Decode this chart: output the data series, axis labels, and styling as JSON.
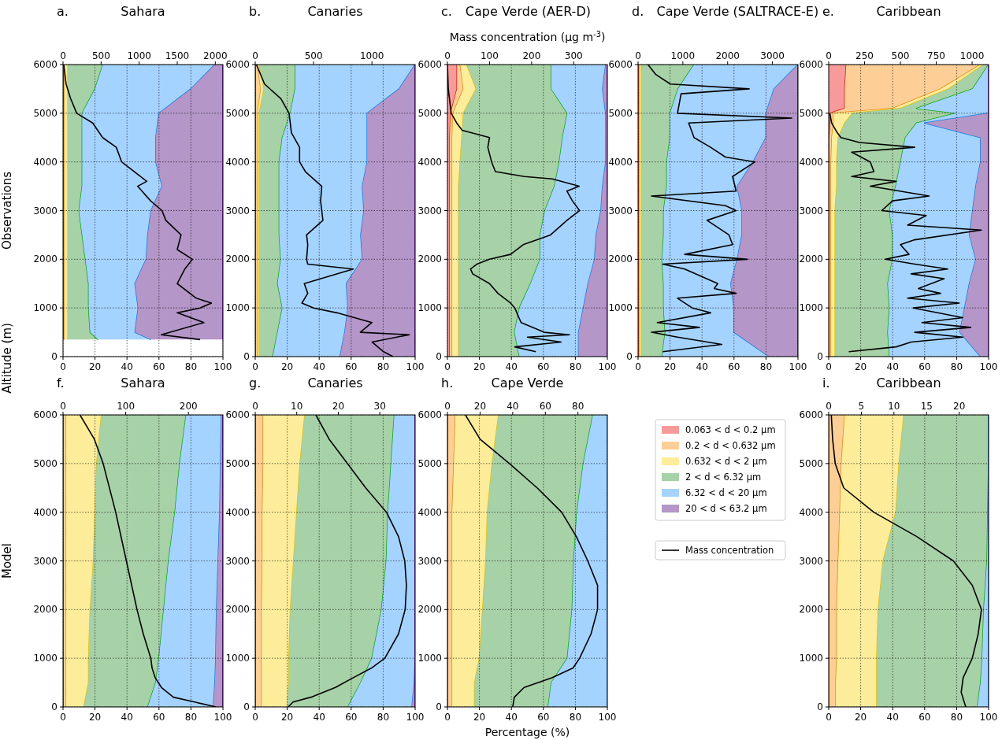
{
  "chart_data": [
    {
      "type": "area",
      "stacked": true,
      "orientation": "horizontal",
      "title": "Sahara",
      "annotations": [
        "a."
      ],
      "ylabel": "Observations",
      "grid": true,
      "xlim": [
        0,
        100
      ],
      "xticks": [
        0,
        20,
        40,
        60,
        80,
        100
      ],
      "ylim": [
        0,
        6000
      ],
      "yticks": [
        0,
        1000,
        2000,
        3000,
        4000,
        5000,
        6000
      ],
      "x2lim": [
        0,
        2100
      ],
      "x2ticks": [
        0,
        500,
        1000,
        1500,
        2000
      ],
      "x": [
        350,
        500,
        1000,
        1500,
        2000,
        2500,
        3000,
        3500,
        4000,
        4500,
        5000,
        5500,
        6000
      ],
      "series": [
        {
          "color": "#f79a9a",
          "values": [
            0.5,
            0.5,
            0.5,
            0.5,
            0.5,
            0.5,
            0.5,
            0.5,
            0.5,
            0.5,
            0.5,
            0.5,
            0.5
          ]
        },
        {
          "color": "#fdcf96",
          "values": [
            0.5,
            0.5,
            0.5,
            0.5,
            0.5,
            0.5,
            0.5,
            0.5,
            0.5,
            0.5,
            0.5,
            0.5,
            0.5
          ]
        },
        {
          "color": "#fdec9a",
          "values": [
            2,
            2,
            2,
            2,
            2,
            2,
            2,
            2,
            2,
            2,
            2,
            2,
            2
          ]
        },
        {
          "color": "#a7d1a7",
          "values": [
            19,
            14,
            13,
            13,
            11,
            9,
            7,
            9,
            9,
            9,
            9,
            17,
            22
          ]
        },
        {
          "color": "#a5d3ff",
          "values": [
            33,
            28,
            31,
            29,
            38,
            41,
            45,
            50,
            46,
            46,
            48,
            60,
            70
          ]
        },
        {
          "color": "#b496c8",
          "values": [
            45,
            55,
            53,
            55,
            48,
            47,
            45,
            38,
            42,
            42,
            40,
            20,
            5
          ]
        },
        {
          "type": "line",
          "axis": "x2",
          "color": "#000000",
          "x": [
            350,
            450,
            700,
            900,
            1000,
            1100,
            1200,
            1500,
            1800,
            2000,
            2200,
            2500,
            2800,
            3000,
            3200,
            3500,
            3600,
            4000,
            4300,
            4500,
            4800,
            5000,
            5300,
            5600,
            6000
          ],
          "values": [
            1800,
            1290,
            1850,
            1500,
            1800,
            1950,
            1750,
            1500,
            1600,
            1700,
            1500,
            1550,
            1350,
            1300,
            1150,
            980,
            1100,
            770,
            700,
            520,
            390,
            180,
            100,
            40,
            10
          ]
        }
      ]
    },
    {
      "type": "area",
      "stacked": true,
      "orientation": "horizontal",
      "title": "Canaries",
      "annotations": [
        "b."
      ],
      "grid": true,
      "xlim": [
        0,
        100
      ],
      "xticks": [
        0,
        20,
        40,
        60,
        80,
        100
      ],
      "ylim": [
        0,
        6000
      ],
      "yticks": [
        0,
        1000,
        2000,
        3000,
        4000,
        5000,
        6000
      ],
      "x2lim": [
        0,
        1370
      ],
      "x2ticks": [
        0,
        500,
        1000
      ],
      "x": [
        0,
        500,
        1000,
        1500,
        2000,
        2500,
        3000,
        3500,
        4000,
        4500,
        5000,
        5500,
        6000
      ],
      "series": [
        {
          "color": "#f79a9a",
          "values": [
            0.5,
            0.5,
            0.5,
            0.5,
            0.5,
            0.5,
            0.5,
            0.5,
            0.5,
            0.5,
            0.5,
            0.5,
            0.5
          ]
        },
        {
          "color": "#fdcf96",
          "values": [
            1,
            1,
            1,
            1,
            1,
            1,
            1,
            1,
            1,
            1,
            1,
            3,
            1
          ]
        },
        {
          "color": "#fdec9a",
          "values": [
            1,
            1,
            1,
            1,
            1,
            1,
            1,
            1,
            1,
            1,
            1,
            2,
            1
          ]
        },
        {
          "color": "#a7d1a7",
          "values": [
            8.5,
            11.5,
            14.5,
            11.5,
            13.5,
            12.5,
            12.5,
            12.5,
            12.5,
            14.5,
            19.5,
            19.5,
            22.5
          ]
        },
        {
          "color": "#a5d3ff",
          "values": [
            42,
            42,
            41,
            43,
            51,
            51,
            53,
            52,
            55,
            53,
            48,
            65,
            75
          ]
        },
        {
          "color": "#b496c8",
          "values": [
            47,
            44,
            42,
            43,
            33,
            34,
            32,
            33,
            30,
            30,
            30,
            10,
            0
          ]
        },
        {
          "type": "line",
          "axis": "x2",
          "color": "#000000",
          "x": [
            0,
            100,
            300,
            450,
            500,
            700,
            900,
            1000,
            1100,
            1300,
            1500,
            1800,
            1900,
            2000,
            2300,
            2500,
            2800,
            3000,
            3200,
            3500,
            3800,
            4000,
            4300,
            4600,
            5000,
            5300,
            5600,
            6000
          ],
          "values": [
            1180,
            1100,
            1000,
            1320,
            900,
            1000,
            700,
            500,
            400,
            450,
            420,
            840,
            450,
            440,
            450,
            440,
            580,
            570,
            560,
            570,
            430,
            380,
            380,
            310,
            290,
            220,
            80,
            10
          ]
        }
      ]
    },
    {
      "type": "area",
      "stacked": true,
      "orientation": "horizontal",
      "title": "Cape Verde (AER-D)",
      "annotations": [
        "c."
      ],
      "x2label": "Mass concentration (µg m$^{-3}$)",
      "grid": true,
      "xlim": [
        0,
        100
      ],
      "xticks": [
        0,
        20,
        40,
        60,
        80,
        100
      ],
      "ylim": [
        0,
        6000
      ],
      "yticks": [
        0,
        1000,
        2000,
        3000,
        4000,
        5000,
        6000
      ],
      "x2lim": [
        0,
        380
      ],
      "x2ticks": [
        0,
        100,
        200,
        300
      ],
      "x": [
        0,
        500,
        1000,
        1500,
        2000,
        2500,
        3000,
        3500,
        4000,
        4500,
        5000,
        5500,
        6000
      ],
      "series": [
        {
          "color": "#f79a9a",
          "values": [
            1.5,
            1.5,
            1.5,
            1.5,
            1.5,
            1.5,
            1.5,
            1.5,
            1.5,
            1.5,
            2,
            6,
            6
          ]
        },
        {
          "color": "#fdcf96",
          "values": [
            1.5,
            1.5,
            1.5,
            1.5,
            1.5,
            1.5,
            1.5,
            1.5,
            1.5,
            1.5,
            1.5,
            4,
            2
          ]
        },
        {
          "color": "#fdec9a",
          "values": [
            4,
            4,
            4,
            4,
            4,
            4,
            4,
            4,
            5,
            6,
            6.5,
            8,
            4
          ]
        },
        {
          "color": "#a7d1a7",
          "values": [
            38,
            35,
            38,
            45,
            51,
            51,
            54,
            60,
            62,
            63,
            65,
            47,
            53
          ]
        },
        {
          "color": "#a5d3ff",
          "values": [
            37,
            40,
            40,
            36,
            34,
            35,
            35,
            30,
            29,
            27,
            24,
            32,
            34
          ]
        },
        {
          "color": "#b496c8",
          "values": [
            18,
            18,
            15,
            12,
            8,
            7,
            4,
            3,
            1,
            1,
            1,
            3,
            1
          ]
        },
        {
          "type": "line",
          "axis": "x2",
          "color": "#000000",
          "x": [
            100,
            200,
            300,
            400,
            450,
            500,
            700,
            900,
            1000,
            1100,
            1300,
            1500,
            1700,
            1800,
            1900,
            2000,
            2100,
            2300,
            2500,
            2800,
            3000,
            3200,
            3400,
            3500,
            3650,
            3700,
            3800,
            4000,
            4300,
            4500,
            4650,
            4800,
            5000,
            5500,
            6000
          ],
          "values": [
            210,
            160,
            270,
            190,
            290,
            230,
            175,
            165,
            160,
            150,
            120,
            100,
            60,
            55,
            70,
            100,
            150,
            180,
            245,
            284,
            314,
            297,
            284,
            313,
            249,
            183,
            114,
            105,
            96,
            100,
            35,
            22,
            9,
            2,
            0
          ]
        }
      ]
    },
    {
      "type": "area",
      "stacked": true,
      "orientation": "horizontal",
      "title": "Cape Verde (SALTRACE-E)",
      "annotations": [
        "d."
      ],
      "legend": "bottom",
      "grid": true,
      "xlim": [
        0,
        100
      ],
      "xticks": [
        0,
        20,
        40,
        60,
        80,
        100
      ],
      "ylim": [
        0,
        6000
      ],
      "yticks": [
        0,
        1000,
        2000,
        3000,
        4000,
        5000,
        6000
      ],
      "x2lim": [
        0,
        3570
      ],
      "x2ticks": [
        0,
        1000,
        2000,
        3000
      ],
      "x": [
        0,
        500,
        1000,
        1500,
        2000,
        2500,
        3000,
        3500,
        4000,
        4500,
        5000,
        5500,
        6000
      ],
      "series": [
        {
          "name": "0.063 < d < 0.2 μm",
          "color": "#f79a9a",
          "values": [
            0.3,
            0.3,
            0.3,
            0.3,
            0.3,
            0.3,
            0.3,
            0.3,
            0.3,
            0.3,
            0.3,
            0.3,
            0.3
          ]
        },
        {
          "name": "0.2 < d < 0.632 μm",
          "color": "#fdcf96",
          "values": [
            0.7,
            0.7,
            0.7,
            0.7,
            0.7,
            0.7,
            0.7,
            0.7,
            0.7,
            0.7,
            0.7,
            0.7,
            0.7
          ]
        },
        {
          "name": "0.632 < d < 2 μm",
          "color": "#fdec9a",
          "values": [
            1,
            1,
            1,
            1,
            1,
            1,
            1,
            1,
            1,
            1,
            1,
            1,
            1
          ]
        },
        {
          "name": "2 < d < 6.32 μm",
          "color": "#a7d1a7",
          "values": [
            13,
            15,
            14,
            14,
            13,
            14,
            14,
            16,
            16,
            18,
            18,
            23,
            33
          ]
        },
        {
          "name": "6.32 < d < 20 μm",
          "color": "#a5d3ff",
          "values": [
            67,
            43,
            44,
            42,
            47,
            49,
            49,
            44,
            54,
            60,
            60,
            60,
            65
          ]
        },
        {
          "name": "20 < d < 63.2 μm",
          "color": "#b496c8",
          "values": [
            18,
            40,
            40,
            42,
            38,
            35,
            35,
            38,
            28,
            20,
            20,
            15,
            0
          ]
        },
        {
          "name": "Mass concentration",
          "type": "line",
          "axis": "x2",
          "color": "#000000",
          "x": [
            100,
            250,
            400,
            500,
            600,
            700,
            900,
            1000,
            1200,
            1300,
            1400,
            1500,
            1800,
            1900,
            2000,
            2100,
            2300,
            2500,
            2800,
            3000,
            3100,
            3300,
            3400,
            3700,
            4000,
            4100,
            4300,
            4500,
            4800,
            4900,
            5000,
            5400,
            5500,
            5600,
            5800,
            6000
          ],
          "values": [
            550,
            1870,
            880,
            300,
            1370,
            430,
            1620,
            1210,
            880,
            2190,
            1700,
            1780,
            1040,
            550,
            2440,
            1040,
            2110,
            2030,
            1540,
            2190,
            1950,
            300,
            2190,
            2110,
            2610,
            1950,
            1620,
            1250,
            1130,
            3430,
            880,
            960,
            2480,
            720,
            390,
            220
          ]
        }
      ]
    },
    {
      "type": "area",
      "stacked": true,
      "orientation": "horizontal",
      "title": "Caribbean",
      "annotations": [
        "e."
      ],
      "grid": true,
      "xlim": [
        0,
        100
      ],
      "xticks": [
        0,
        20,
        40,
        60,
        80,
        100
      ],
      "ylim": [
        0,
        6000
      ],
      "yticks": [
        0,
        1000,
        2000,
        3000,
        4000,
        5000,
        6000
      ],
      "x2lim": [
        0,
        1115
      ],
      "x2ticks": [
        0,
        250,
        500,
        750,
        1000
      ],
      "x": [
        0,
        500,
        1000,
        1500,
        2000,
        2500,
        3000,
        3500,
        4000,
        4500,
        4800,
        5000,
        5100,
        5500,
        6000
      ],
      "series": [
        {
          "color": "#f79a9a",
          "values": [
            0.5,
            0.5,
            0.5,
            0.5,
            0.5,
            0.5,
            0.5,
            0.5,
            0.5,
            0.5,
            1,
            1,
            10,
            10,
            11
          ]
        },
        {
          "color": "#fdcf96",
          "values": [
            1,
            1,
            1,
            1,
            1,
            1,
            1,
            1,
            1,
            1.5,
            2,
            2,
            30,
            60,
            84
          ]
        },
        {
          "color": "#fdec9a",
          "values": [
            2.5,
            2.5,
            2.5,
            2.5,
            2.5,
            2.5,
            2.5,
            3.5,
            3.5,
            4,
            7,
            12,
            5,
            5,
            2
          ]
        },
        {
          "color": "#a7d1a7",
          "values": [
            34,
            33,
            34,
            33,
            36,
            36,
            34,
            37,
            40,
            42,
            45,
            65,
            10,
            15,
            3
          ]
        },
        {
          "color": "#a5d3ff",
          "values": [
            57,
            45,
            47,
            51,
            52,
            48,
            52,
            50,
            50,
            47,
            5,
            20,
            45,
            10,
            0
          ]
        },
        {
          "color": "#b496c8",
          "values": [
            5,
            18,
            15,
            12,
            8,
            12,
            10,
            8,
            5,
            5,
            40,
            0,
            0,
            0,
            0
          ]
        },
        {
          "type": "line",
          "axis": "x2",
          "color": "#000000",
          "x": [
            100,
            200,
            300,
            400,
            500,
            600,
            700,
            800,
            1000,
            1100,
            1200,
            1300,
            1400,
            1600,
            1700,
            1800,
            1900,
            2000,
            2100,
            2300,
            2400,
            2600,
            2700,
            2900,
            3000,
            3200,
            3300,
            3500,
            3600,
            3700,
            3800,
            4000,
            4200,
            4300,
            4400,
            4500,
            4600,
            4800,
            5000
          ],
          "values": [
            140,
            470,
            575,
            935,
            600,
            990,
            650,
            935,
            590,
            910,
            550,
            780,
            625,
            805,
            575,
            830,
            600,
            395,
            560,
            500,
            600,
            1065,
            550,
            680,
            370,
            445,
            700,
            290,
            470,
            160,
            315,
            290,
            160,
            600,
            215,
            85,
            60,
            20,
            8
          ]
        }
      ]
    },
    {
      "type": "area",
      "stacked": true,
      "orientation": "horizontal",
      "title": "Sahara",
      "annotations": [
        "f.",
        "Altitude (m)"
      ],
      "ylabel": "Model",
      "grid": true,
      "xlim": [
        0,
        100
      ],
      "xticks": [
        0,
        20,
        40,
        60,
        80,
        100
      ],
      "ylim": [
        0,
        6000
      ],
      "yticks": [
        0,
        1000,
        2000,
        3000,
        4000,
        5000,
        6000
      ],
      "x2lim": [
        0,
        255
      ],
      "x2ticks": [
        0,
        100,
        200
      ],
      "x": [
        0,
        500,
        1000,
        2000,
        3000,
        4000,
        5000,
        6000
      ],
      "series": [
        {
          "color": "#f79a9a",
          "values": [
            0.5,
            0.5,
            0.5,
            0.5,
            0.5,
            0.5,
            0.5,
            0.5
          ]
        },
        {
          "color": "#fdcf96",
          "values": [
            1.5,
            1.5,
            1.5,
            1.5,
            1.5,
            1.5,
            1.5,
            1.5
          ]
        },
        {
          "color": "#fdec9a",
          "values": [
            11,
            14,
            14,
            15,
            17,
            18,
            19,
            22
          ]
        },
        {
          "color": "#a7d1a7",
          "values": [
            40,
            42,
            44,
            46,
            47,
            50,
            52,
            53
          ]
        },
        {
          "color": "#a5d3ff",
          "values": [
            41,
            37,
            35.5,
            33,
            31,
            28,
            25.5,
            22
          ]
        },
        {
          "color": "#b496c8",
          "values": [
            6,
            5,
            4.5,
            4,
            3,
            2,
            1.5,
            1
          ]
        },
        {
          "type": "line",
          "axis": "x2",
          "color": "#000000",
          "x": [
            0,
            100,
            200,
            400,
            600,
            800,
            1000,
            1500,
            2000,
            3000,
            4000,
            5000,
            5500,
            6000
          ],
          "values": [
            244,
            210,
            176,
            157,
            147,
            142,
            140,
            128,
            118,
            101,
            84,
            64,
            50,
            27
          ]
        }
      ]
    },
    {
      "type": "area",
      "stacked": true,
      "orientation": "horizontal",
      "title": "Canaries",
      "annotations": [
        "g."
      ],
      "grid": true,
      "xlim": [
        0,
        100
      ],
      "xticks": [
        0,
        20,
        40,
        60,
        80,
        100
      ],
      "ylim": [
        0,
        6000
      ],
      "yticks": [
        0,
        1000,
        2000,
        3000,
        4000,
        5000,
        6000
      ],
      "x2lim": [
        0,
        38.5
      ],
      "x2ticks": [
        0,
        10,
        20,
        30
      ],
      "x": [
        0,
        500,
        1000,
        2000,
        3000,
        4000,
        5000,
        6000
      ],
      "series": [
        {
          "color": "#f79a9a",
          "values": [
            0.5,
            0.5,
            0.5,
            0.5,
            0.5,
            0.5,
            0.5,
            0.5
          ]
        },
        {
          "color": "#fdcf96",
          "values": [
            3.5,
            3.5,
            3.5,
            3.5,
            4,
            4,
            4.5,
            4.5
          ]
        },
        {
          "color": "#fdec9a",
          "values": [
            16,
            17,
            17,
            18,
            19.5,
            21.5,
            23,
            26
          ]
        },
        {
          "color": "#a7d1a7",
          "values": [
            38,
            45,
            52,
            57,
            58,
            57,
            57,
            56
          ]
        },
        {
          "color": "#a5d3ff",
          "values": [
            40,
            33.5,
            27,
            21,
            18,
            17,
            15,
            13
          ]
        },
        {
          "color": "#b496c8",
          "values": [
            2,
            0.5,
            0,
            0,
            0,
            0,
            0,
            0
          ]
        },
        {
          "type": "line",
          "axis": "x2",
          "color": "#000000",
          "x": [
            0,
            100,
            200,
            400,
            600,
            800,
            1000,
            1500,
            2000,
            2500,
            3000,
            3500,
            4000,
            4500,
            5000,
            5500,
            6000
          ],
          "values": [
            7.9,
            9.1,
            13.4,
            19.3,
            23.6,
            28,
            31.2,
            34.5,
            36.1,
            36.4,
            36,
            34.5,
            31.6,
            26.6,
            22.2,
            17.8,
            14.6
          ]
        }
      ]
    },
    {
      "type": "area",
      "stacked": true,
      "orientation": "horizontal",
      "title": "Cape Verde",
      "annotations": [
        "h."
      ],
      "xlabel": "Percentage (%)",
      "grid": true,
      "xlim": [
        0,
        100
      ],
      "xticks": [
        0,
        20,
        40,
        60,
        80,
        100
      ],
      "ylim": [
        0,
        6000
      ],
      "yticks": [
        0,
        1000,
        2000,
        3000,
        4000,
        5000,
        6000
      ],
      "x2lim": [
        0,
        98
      ],
      "x2ticks": [
        0,
        20,
        40,
        60,
        80
      ],
      "x": [
        0,
        500,
        1000,
        2000,
        3000,
        4000,
        5000,
        6000
      ],
      "series": [
        {
          "color": "#f79a9a",
          "values": [
            0.5,
            0.5,
            0.5,
            0.5,
            0.5,
            0.5,
            0.5,
            0.5
          ]
        },
        {
          "color": "#fdcf96",
          "values": [
            2.5,
            2.5,
            2.5,
            2.5,
            2.5,
            2.5,
            3.5,
            4.5
          ]
        },
        {
          "color": "#fdec9a",
          "values": [
            14,
            14,
            17,
            19,
            21,
            22,
            24,
            27
          ]
        },
        {
          "color": "#a7d1a7",
          "values": [
            46,
            48,
            55,
            56,
            55,
            56,
            57,
            59
          ]
        },
        {
          "color": "#a5d3ff",
          "values": [
            37,
            35,
            25,
            22,
            21,
            19,
            15,
            9
          ]
        },
        {
          "type": "line",
          "axis": "x2",
          "color": "#000000",
          "x": [
            0,
            200,
            400,
            600,
            800,
            1000,
            1500,
            2000,
            2500,
            3000,
            3500,
            4000,
            4500,
            5000,
            5500,
            6000
          ],
          "values": [
            40,
            41,
            47,
            64,
            77,
            81,
            88,
            92,
            92,
            86,
            79,
            70,
            55,
            38,
            20,
            11
          ]
        }
      ]
    },
    {
      "type": "area",
      "stacked": true,
      "orientation": "horizontal",
      "title": "Caribbean",
      "annotations": [
        "i."
      ],
      "grid": true,
      "xlim": [
        0,
        100
      ],
      "xticks": [
        0,
        20,
        40,
        60,
        80,
        100
      ],
      "ylim": [
        0,
        6000
      ],
      "yticks": [
        0,
        1000,
        2000,
        3000,
        4000,
        5000,
        6000
      ],
      "x2lim": [
        0,
        24.5
      ],
      "x2ticks": [
        0,
        5,
        10,
        15,
        20
      ],
      "x": [
        0,
        500,
        1000,
        2000,
        3000,
        4000,
        5000,
        6000
      ],
      "series": [
        {
          "color": "#f79a9a",
          "values": [
            0.5,
            0.5,
            0.5,
            0.5,
            0.5,
            0.5,
            0.5,
            0.5
          ]
        },
        {
          "color": "#fdcf96",
          "values": [
            4,
            4,
            4.5,
            4.5,
            5.5,
            6.5,
            7.5,
            9.5
          ]
        },
        {
          "color": "#fdec9a",
          "values": [
            25.5,
            25.5,
            25,
            26,
            28,
            35,
            36,
            37
          ]
        },
        {
          "color": "#a7d1a7",
          "values": [
            63,
            65,
            66,
            66,
            65,
            57.5,
            56,
            53
          ]
        },
        {
          "color": "#a5d3ff",
          "values": [
            7,
            5,
            4,
            3,
            1,
            0.5,
            0,
            0
          ]
        },
        {
          "type": "line",
          "axis": "x2",
          "color": "#000000",
          "x": [
            0,
            300,
            600,
            1000,
            1500,
            2000,
            2500,
            3000,
            3500,
            4000,
            4500,
            5000,
            5500,
            6000
          ],
          "values": [
            21,
            20.3,
            20.6,
            22,
            22.9,
            23.4,
            22,
            19.1,
            13.5,
            6.9,
            2.3,
            1,
            0.6,
            0.4
          ]
        }
      ]
    }
  ]
}
